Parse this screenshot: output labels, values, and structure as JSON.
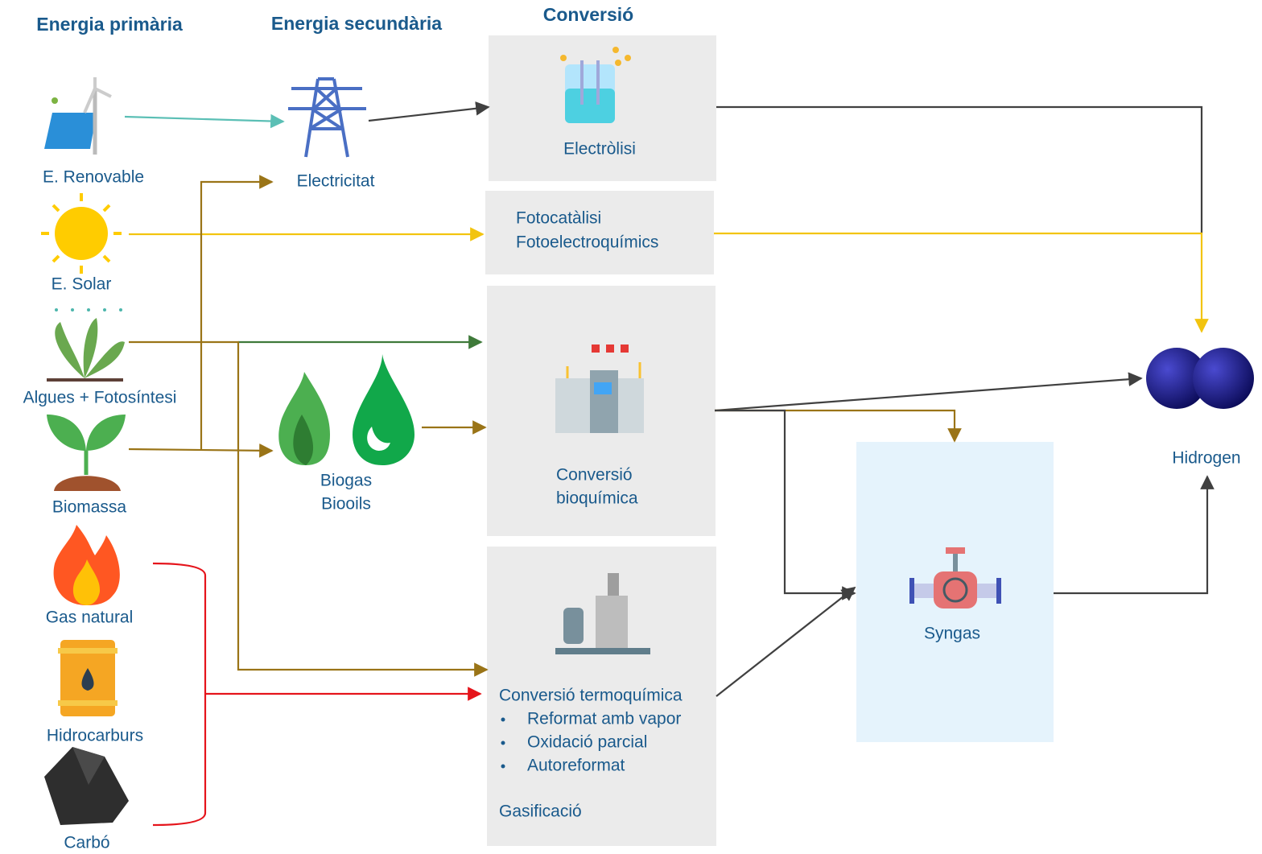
{
  "headers": {
    "primary": "Energia primària",
    "secondary": "Energia secundària",
    "conversion": "Conversió"
  },
  "primary": [
    "E. Renovable",
    "E. Solar",
    "Algues + Fotosíntesi",
    "Biomassa",
    "Gas natural",
    "Hidrocarburs",
    "Carbó"
  ],
  "secondary": {
    "electricity": "Electricitat",
    "bio": [
      "Biogas",
      "Biooils"
    ]
  },
  "conversion": {
    "electrolysis": "Electròlisi",
    "photo": [
      "Fotocatàlisi",
      "Fotoelectroquímics"
    ],
    "biochemical": [
      "Conversió",
      "bioquímica"
    ],
    "thermochemical": {
      "title": "Conversió termoquímica",
      "items": [
        "Reformat amb vapor",
        "Oxidació parcial",
        "Autoreformat"
      ],
      "gasification": "Gasificació"
    }
  },
  "outputs": {
    "syngas": "Syngas",
    "hydrogen": "Hidrogen"
  }
}
